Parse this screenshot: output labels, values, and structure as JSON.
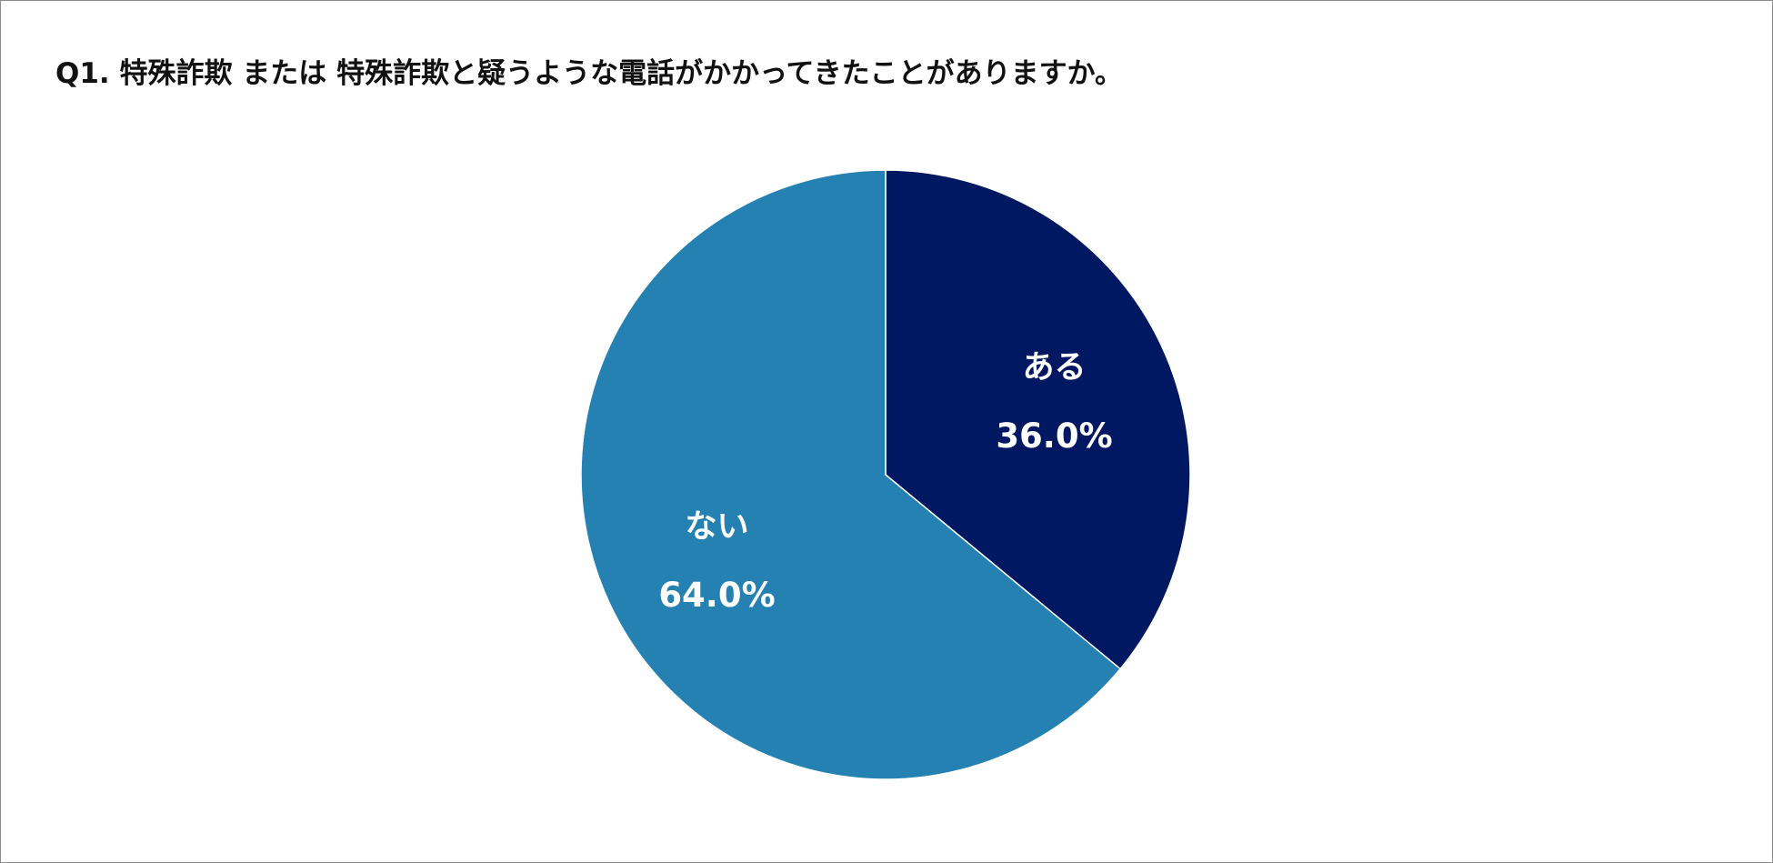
{
  "chart_data": {
    "type": "pie",
    "title": "Q1. 特殊詐欺 または 特殊詐欺と疑うような電話がかかってきたことがありますか。",
    "slices": [
      {
        "label": "ある",
        "value": 36.0,
        "display": "36.0%",
        "color": "#001761"
      },
      {
        "label": "ない",
        "value": 64.0,
        "display": "64.0%",
        "color": "#2581b2"
      }
    ],
    "start_angle": "12 o'clock",
    "direction": "clockwise",
    "labels_inside": true
  }
}
